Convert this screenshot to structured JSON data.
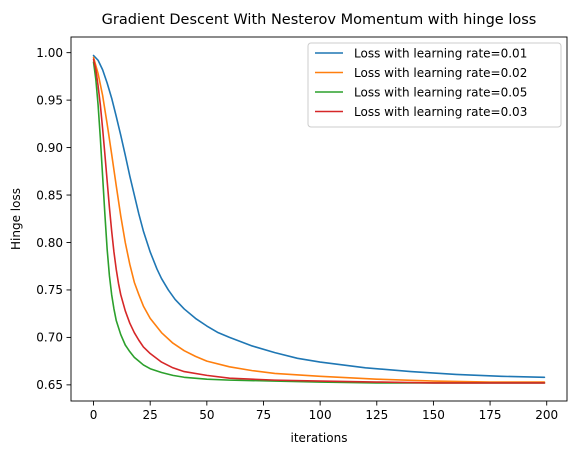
{
  "chart_data": {
    "type": "line",
    "title": "Gradient Descent With Nesterov Momentum with hinge loss",
    "xlabel": "iterations",
    "ylabel": "Hinge loss",
    "xlim": [
      -9.95,
      208.95
    ],
    "ylim": [
      0.633,
      1.0165
    ],
    "xticks": [
      0,
      25,
      50,
      75,
      100,
      125,
      150,
      175,
      200
    ],
    "yticks": [
      0.65,
      0.7,
      0.75,
      0.8,
      0.85,
      0.9,
      0.95,
      1.0
    ],
    "xtick_labels": [
      "0",
      "25",
      "50",
      "75",
      "100",
      "125",
      "150",
      "175",
      "200"
    ],
    "ytick_labels": [
      "0.65",
      "0.70",
      "0.75",
      "0.80",
      "0.85",
      "0.90",
      "0.95",
      "1.00"
    ],
    "grid": false,
    "legend_position": "top-right",
    "series": [
      {
        "name": "Loss with learning rate=0.01",
        "color": "#1f77b4",
        "x": [
          0,
          2,
          4,
          6,
          8,
          10,
          12,
          14,
          16,
          18,
          20,
          22,
          25,
          28,
          30,
          33,
          36,
          40,
          45,
          50,
          55,
          60,
          70,
          80,
          90,
          100,
          120,
          140,
          160,
          180,
          199
        ],
        "y": [
          0.997,
          0.992,
          0.982,
          0.968,
          0.952,
          0.933,
          0.913,
          0.892,
          0.87,
          0.85,
          0.83,
          0.812,
          0.79,
          0.772,
          0.762,
          0.75,
          0.74,
          0.73,
          0.72,
          0.712,
          0.705,
          0.7,
          0.691,
          0.684,
          0.678,
          0.674,
          0.668,
          0.664,
          0.661,
          0.659,
          0.658
        ]
      },
      {
        "name": "Loss with learning rate=0.02",
        "color": "#ff7f0e",
        "x": [
          0,
          2,
          4,
          6,
          8,
          10,
          12,
          14,
          16,
          18,
          20,
          22,
          25,
          30,
          35,
          40,
          45,
          50,
          60,
          70,
          80,
          100,
          125,
          150,
          175,
          199
        ],
        "y": [
          0.995,
          0.978,
          0.955,
          0.925,
          0.893,
          0.86,
          0.828,
          0.8,
          0.777,
          0.758,
          0.745,
          0.733,
          0.72,
          0.705,
          0.694,
          0.686,
          0.68,
          0.675,
          0.669,
          0.665,
          0.662,
          0.659,
          0.656,
          0.654,
          0.653,
          0.653
        ]
      },
      {
        "name": "Loss with learning rate=0.05",
        "color": "#2ca02c",
        "x": [
          0,
          1,
          2,
          3,
          4,
          5,
          6,
          7,
          8,
          9,
          10,
          12,
          14,
          16,
          18,
          20,
          22,
          25,
          30,
          35,
          40,
          50,
          60,
          80,
          100,
          125,
          150,
          175,
          199
        ],
        "y": [
          0.99,
          0.972,
          0.945,
          0.91,
          0.87,
          0.83,
          0.793,
          0.765,
          0.745,
          0.73,
          0.718,
          0.703,
          0.692,
          0.685,
          0.679,
          0.675,
          0.671,
          0.667,
          0.663,
          0.66,
          0.658,
          0.656,
          0.655,
          0.654,
          0.653,
          0.652,
          0.652,
          0.652,
          0.652
        ]
      },
      {
        "name": "Loss with learning rate=0.03",
        "color": "#d62728",
        "x": [
          0,
          1,
          2,
          3,
          4,
          5,
          6,
          7,
          8,
          9,
          10,
          11,
          12,
          14,
          16,
          18,
          20,
          22,
          25,
          30,
          35,
          40,
          50,
          60,
          80,
          100,
          125,
          150,
          175,
          199
        ],
        "y": [
          0.993,
          0.982,
          0.965,
          0.945,
          0.92,
          0.893,
          0.865,
          0.837,
          0.812,
          0.79,
          0.772,
          0.757,
          0.745,
          0.728,
          0.715,
          0.705,
          0.697,
          0.69,
          0.683,
          0.674,
          0.668,
          0.664,
          0.66,
          0.657,
          0.655,
          0.654,
          0.653,
          0.652,
          0.652,
          0.652
        ]
      }
    ]
  }
}
